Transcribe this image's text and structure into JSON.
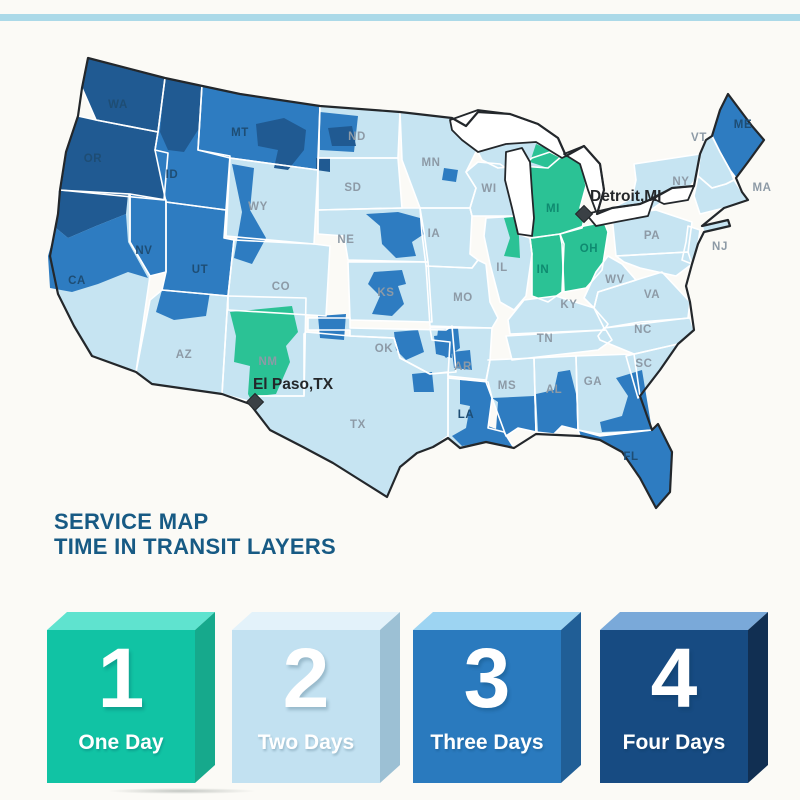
{
  "page": {
    "background": "#fbfaf6",
    "stripe_color": "#abd9e8"
  },
  "title": {
    "line1": "SERVICE MAP",
    "line2": "TIME IN TRANSIT LAYERS",
    "color": "#175a84"
  },
  "map": {
    "colors": {
      "day1": "#2bc295",
      "day2": "#c6e4f2",
      "day3": "#2e7cc1",
      "day4": "#205a92",
      "water": "#ffffff",
      "outline": "#23272b",
      "state_border": "#ffffff",
      "label_light": "#8d9aa6",
      "label_dark": "#1e4d74",
      "label_teal": "#0f8a70",
      "city_label": "#24272a",
      "city_marker": "#3a4045"
    },
    "regions": [
      {
        "id": "WA",
        "day": 4
      },
      {
        "id": "OR",
        "day": 4
      },
      {
        "id": "CA",
        "day": 2
      },
      {
        "id": "NV",
        "day": 3
      },
      {
        "id": "ID",
        "day": 3
      },
      {
        "id": "MT",
        "day": 3
      },
      {
        "id": "WY",
        "day": 2
      },
      {
        "id": "UT",
        "day": 3
      },
      {
        "id": "CO",
        "day": 2
      },
      {
        "id": "AZ",
        "day": 2
      },
      {
        "id": "NM",
        "day": 2
      },
      {
        "id": "ND",
        "day": 2
      },
      {
        "id": "SD",
        "day": 2
      },
      {
        "id": "NE",
        "day": 2
      },
      {
        "id": "KS",
        "day": 2
      },
      {
        "id": "OK",
        "day": 2
      },
      {
        "id": "TX",
        "day": 2
      },
      {
        "id": "MN",
        "day": 2
      },
      {
        "id": "WI",
        "day": 2
      },
      {
        "id": "IA",
        "day": 2
      },
      {
        "id": "MO",
        "day": 2
      },
      {
        "id": "IL",
        "day": 2
      },
      {
        "id": "IN",
        "day": 1
      },
      {
        "id": "OH",
        "day": 1
      },
      {
        "id": "MI",
        "day": 1
      },
      {
        "id": "UP",
        "day": 2
      },
      {
        "id": "KY",
        "day": 2
      },
      {
        "id": "TN",
        "day": 2
      },
      {
        "id": "AR",
        "day": 2
      },
      {
        "id": "LA",
        "day": 2
      },
      {
        "id": "MS",
        "day": 2
      },
      {
        "id": "AL",
        "day": 2
      },
      {
        "id": "GA",
        "day": 2
      },
      {
        "id": "FL",
        "day": 3
      },
      {
        "id": "SC",
        "day": 2
      },
      {
        "id": "NC",
        "day": 2
      },
      {
        "id": "VA",
        "day": 2
      },
      {
        "id": "WV",
        "day": 2
      },
      {
        "id": "PA",
        "day": 2
      },
      {
        "id": "NY",
        "day": 2
      },
      {
        "id": "NJ",
        "day": 2
      },
      {
        "id": "VT_NH",
        "day": 2
      },
      {
        "id": "ME",
        "day": 3
      },
      {
        "id": "MA_CT_RI",
        "day": 2
      },
      {
        "id": "LONG_ISLAND",
        "day": 2
      },
      {
        "id": "MD_DE",
        "day": 2
      }
    ],
    "patches": [
      {
        "id": "north-ca",
        "day": 4
      },
      {
        "id": "central-ca",
        "day": 3
      },
      {
        "id": "north-id",
        "day": 4
      },
      {
        "id": "mt-east",
        "day": 4
      },
      {
        "id": "mt-sd-corner",
        "day": 4
      },
      {
        "id": "nd-west",
        "day": 3
      },
      {
        "id": "nd-center",
        "day": 4
      },
      {
        "id": "mn-metro",
        "day": 3
      },
      {
        "id": "ne-east",
        "day": 3
      },
      {
        "id": "ks-central",
        "day": 3
      },
      {
        "id": "wy-west",
        "day": 3
      },
      {
        "id": "ut-az-border",
        "day": 3
      },
      {
        "id": "co-ok-corner",
        "day": 3
      },
      {
        "id": "ok-central",
        "day": 3
      },
      {
        "id": "ok-east",
        "day": 3
      },
      {
        "id": "tx-north",
        "day": 3
      },
      {
        "id": "ar-west",
        "day": 3
      },
      {
        "id": "ar-south",
        "day": 3
      },
      {
        "id": "nm-south",
        "day": 1
      },
      {
        "id": "il-chicago",
        "day": 1
      },
      {
        "id": "up-east",
        "day": 1
      },
      {
        "id": "la-main",
        "day": 3
      },
      {
        "id": "ms-south",
        "day": 3
      },
      {
        "id": "al-south",
        "day": 3
      },
      {
        "id": "ga-coast",
        "day": 3
      }
    ],
    "labels": [
      {
        "abbr": "WA",
        "day": 4
      },
      {
        "abbr": "OR",
        "day": 4
      },
      {
        "abbr": "CA",
        "day": 3
      },
      {
        "abbr": "NV",
        "day": 3
      },
      {
        "abbr": "ID",
        "day": 3
      },
      {
        "abbr": "MT",
        "day": 3
      },
      {
        "abbr": "WY",
        "day": 2
      },
      {
        "abbr": "UT",
        "day": 3
      },
      {
        "abbr": "CO",
        "day": 2
      },
      {
        "abbr": "AZ",
        "day": 2
      },
      {
        "abbr": "NM",
        "day": 2
      },
      {
        "abbr": "ND",
        "day": 2
      },
      {
        "abbr": "SD",
        "day": 2
      },
      {
        "abbr": "NE",
        "day": 2
      },
      {
        "abbr": "KS",
        "day": 2
      },
      {
        "abbr": "OK",
        "day": 2
      },
      {
        "abbr": "TX",
        "day": 2
      },
      {
        "abbr": "MN",
        "day": 2
      },
      {
        "abbr": "IA",
        "day": 2
      },
      {
        "abbr": "MO",
        "day": 2
      },
      {
        "abbr": "AR",
        "day": 2
      },
      {
        "abbr": "LA",
        "day": 3
      },
      {
        "abbr": "WI",
        "day": 2
      },
      {
        "abbr": "IL",
        "day": 2
      },
      {
        "abbr": "IN",
        "day": 1
      },
      {
        "abbr": "MI",
        "day": 1
      },
      {
        "abbr": "OH",
        "day": 1
      },
      {
        "abbr": "KY",
        "day": 2
      },
      {
        "abbr": "TN",
        "day": 2
      },
      {
        "abbr": "MS",
        "day": 2
      },
      {
        "abbr": "AL",
        "day": 2
      },
      {
        "abbr": "GA",
        "day": 2
      },
      {
        "abbr": "FL",
        "day": 3
      },
      {
        "abbr": "SC",
        "day": 2
      },
      {
        "abbr": "NC",
        "day": 2
      },
      {
        "abbr": "VA",
        "day": 2
      },
      {
        "abbr": "WV",
        "day": 2
      },
      {
        "abbr": "PA",
        "day": 2
      },
      {
        "abbr": "NY",
        "day": 2
      },
      {
        "abbr": "NJ",
        "day": 2
      },
      {
        "abbr": "VT",
        "day": 2
      },
      {
        "abbr": "MA",
        "day": 2
      },
      {
        "abbr": "ME",
        "day": 3
      }
    ],
    "cities": [
      {
        "name": "Detroit,MI"
      },
      {
        "name": "El Paso,TX"
      }
    ]
  },
  "legend": {
    "items": [
      {
        "number": "1",
        "label": "One Day",
        "front": "#11c3a4",
        "top": "#5fe3cf",
        "side": "#16a98c",
        "text_color": "#ffffff"
      },
      {
        "number": "2",
        "label": "Two Days",
        "front": "#c2e1f1",
        "top": "#e3f2fa",
        "side": "#9cc0d4",
        "text_color": "#ffffff"
      },
      {
        "number": "3",
        "label": "Three Days",
        "front": "#2a7abe",
        "top": "#9dd4f2",
        "side": "#205e96",
        "text_color": "#ffffff"
      },
      {
        "number": "4",
        "label": "Four Days",
        "front": "#174b82",
        "top": "#7aa9d9",
        "side": "#112f52",
        "text_color": "#ffffff"
      }
    ]
  }
}
